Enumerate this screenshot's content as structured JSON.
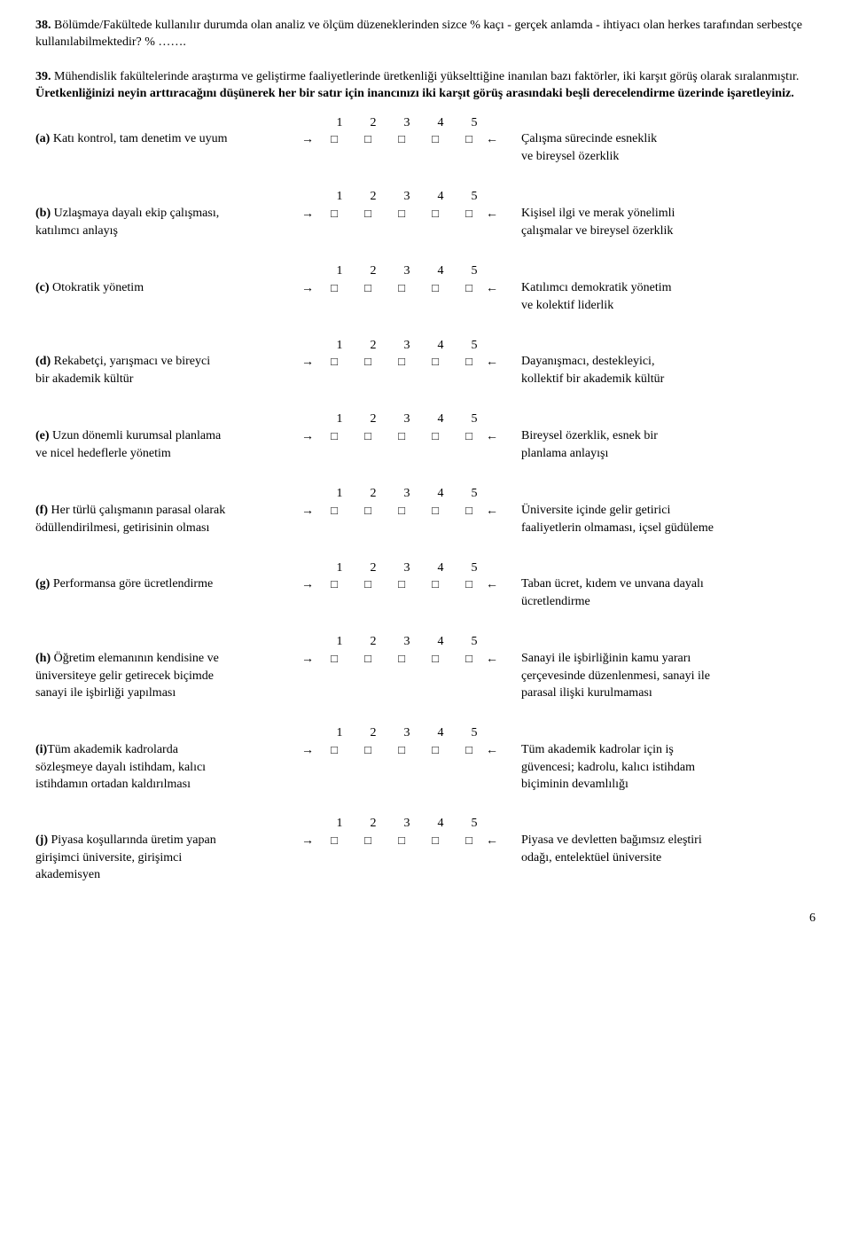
{
  "q38": {
    "text": "38. Bölümde/Fakültede kullanılır durumda olan analiz ve ölçüm düzeneklerinden sizce % kaçı - gerçek anlamda - ihtiyacı olan herkes tarafından serbestçe kullanılabilmektedir?    % …….",
    "bold": "38."
  },
  "q39": {
    "intro": "39. Mühendislik fakültelerinde araştırma ve geliştirme faaliyetlerinde üretkenliği yükselttiğine inanılan bazı faktörler, iki karşıt görüş olarak sıralanmıştır. Üretkenliğinizi neyin arttıracağını düşünerek her bir satır için inancınızı iki karşıt görüş arasındaki beşli derecelendirme üzerinde işaretleyiniz.",
    "bold": "39."
  },
  "scale_labels": [
    "1",
    "2",
    "3",
    "4",
    "5"
  ],
  "box_glyph": "□",
  "arrow_right": "→",
  "arrow_left": "←",
  "items": [
    {
      "label": "(a)",
      "left": " Katı kontrol, tam denetim ve uyum",
      "right": " Çalışma sürecinde esneklik",
      "right2": "ve bireysel özerklik"
    },
    {
      "label": "(b)",
      "left": " Uzlaşmaya dayalı ekip çalışması,",
      "left2": "katılımcı anlayış",
      "right": " Kişisel ilgi ve merak yönelimli",
      "right2": "çalışmalar ve bireysel özerklik"
    },
    {
      "label": "(c)",
      "left": " Otokratik yönetim",
      "right": " Katılımcı demokratik yönetim",
      "right2": "ve kolektif liderlik"
    },
    {
      "label": "(d)",
      "left": " Rekabetçi, yarışmacı ve bireyci",
      "left2": "bir akademik kültür",
      "right": " Dayanışmacı, destekleyici,",
      "right2": "kollektif bir akademik kültür"
    },
    {
      "label": "(e)",
      "left": " Uzun dönemli kurumsal planlama",
      "left2": "ve nicel hedeflerle yönetim",
      "right": " Bireysel özerklik, esnek bir",
      "right2": "planlama anlayışı"
    },
    {
      "label": "(f)",
      "left": " Her türlü çalışmanın parasal olarak",
      "left2": "ödüllendirilmesi, getirisinin olması",
      "right": "Üniversite içinde gelir getirici",
      "right2": "faaliyetlerin olmaması, içsel güdüleme"
    },
    {
      "label": "(g)",
      "left": " Performansa göre ücretlendirme",
      "right": " Taban ücret, kıdem ve unvana dayalı",
      "right2": "ücretlendirme"
    },
    {
      "label": "(h)",
      "left": " Öğretim elemanının kendisine ve",
      "left2": "üniversiteye gelir getirecek biçimde",
      "left3": "sanayi ile işbirliği yapılması",
      "right": " Sanayi ile işbirliğinin kamu yararı",
      "right2": "çerçevesinde düzenlenmesi, sanayi ile",
      "right3": "parasal ilişki kurulmaması"
    },
    {
      "label": "(i)",
      "left": "Tüm akademik kadrolarda",
      "left2": "sözleşmeye dayalı istihdam, kalıcı",
      "left3": "istihdamın ortadan kaldırılması",
      "right": " Tüm akademik kadrolar için iş",
      "right2": "güvencesi; kadrolu, kalıcı istihdam",
      "right3": "biçiminin devamlılığı"
    },
    {
      "label": "(j)",
      "left": " Piyasa koşullarında üretim yapan",
      "left2": "girişimci üniversite, girişimci",
      "left3": "akademisyen",
      "right": " Piyasa ve devletten bağımsız eleştiri",
      "right2": "odağı, entelektüel üniversite"
    }
  ],
  "page_number": "6"
}
